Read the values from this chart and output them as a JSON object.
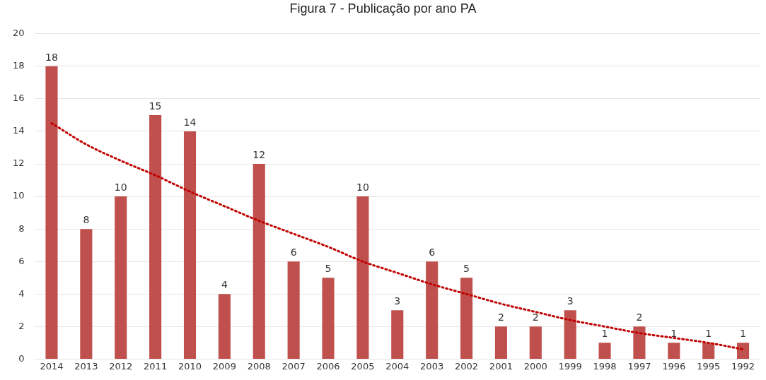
{
  "chart_data": {
    "type": "bar",
    "title": "Figura 7 - Publicação por ano PA",
    "categories": [
      "2014",
      "2013",
      "2012",
      "2011",
      "2010",
      "2009",
      "2008",
      "2007",
      "2006",
      "2005",
      "2004",
      "2003",
      "2002",
      "2001",
      "2000",
      "1999",
      "1998",
      "1997",
      "1996",
      "1995",
      "1992"
    ],
    "series": [
      {
        "color": "#c0504d",
        "values": [
          18,
          8,
          10,
          15,
          14,
          4,
          12,
          6,
          5,
          10,
          3,
          6,
          5,
          2,
          2,
          3,
          1,
          2,
          1,
          1,
          1
        ],
        "value_labels": [
          "18",
          "8",
          "10",
          "15",
          "14",
          "4",
          "12",
          "6",
          "5",
          "10",
          "3",
          "6",
          "5",
          "2",
          "2",
          "3",
          "1",
          "2",
          "1",
          "1",
          "1"
        ]
      },
      {
        "type": "line",
        "color": "#c00000",
        "line_style": "dotted",
        "marker": "none",
        "values": [
          14.5,
          13.2,
          12.2,
          11.3,
          10.3,
          9.4,
          8.5,
          7.7,
          6.9,
          6.0,
          5.3,
          4.6,
          4.0,
          3.4,
          2.9,
          2.4,
          2.0,
          1.6,
          1.3,
          1.0,
          0.6
        ]
      }
    ],
    "ylim": [
      0,
      20
    ],
    "yticks": [
      0,
      2,
      4,
      6,
      8,
      10,
      12,
      14,
      16,
      18,
      20
    ],
    "grid": "y",
    "legend": false
  }
}
